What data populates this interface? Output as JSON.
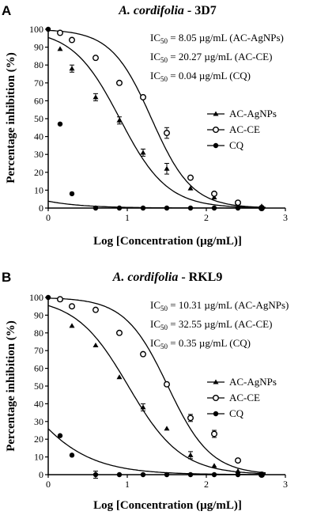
{
  "chart_data": [
    {
      "panel_label": "A",
      "title_italic": "A. cordifolia",
      "title_rest": " - 3D7",
      "type": "scatter",
      "xlabel": "Log [Concentration (µg/mL)]",
      "ylabel": "Percentage inhibition (%)",
      "xlim": [
        0,
        3
      ],
      "ylim": [
        0,
        100
      ],
      "x_ticks": [
        "0",
        "1",
        "2",
        "3"
      ],
      "y_ticks": [
        "0",
        "10",
        "20",
        "30",
        "40",
        "50",
        "60",
        "70",
        "80",
        "90",
        "100"
      ],
      "legend_position": "right-middle",
      "ic50_notes": [
        {
          "prefix": "IC",
          "sub": "50",
          "text": " = 8.05 µg/mL (AC-AgNPs)"
        },
        {
          "prefix": "IC",
          "sub": "50",
          "text": " = 20.27 µg/mL (AC-CE)"
        },
        {
          "prefix": "IC",
          "sub": "50",
          "text": " = 0.04 µg/mL (CQ)"
        }
      ],
      "series": [
        {
          "name": "AC-AgNPs",
          "marker": "triangle",
          "x": [
            0.15,
            0.3,
            0.6,
            0.9,
            1.2,
            1.5,
            1.8,
            2.1,
            2.4,
            2.7
          ],
          "y": [
            89,
            78,
            62,
            49,
            31,
            22,
            11,
            6,
            3,
            1
          ],
          "err": [
            0,
            2,
            2,
            2,
            2,
            3,
            0,
            0,
            0,
            0
          ],
          "ic50": 0.906,
          "hill": 1.45
        },
        {
          "name": "AC-CE",
          "marker": "circle-open",
          "x": [
            0.15,
            0.3,
            0.6,
            0.9,
            1.2,
            1.5,
            1.8,
            2.1,
            2.4,
            2.7
          ],
          "y": [
            98,
            94,
            84,
            70,
            62,
            42,
            17,
            8,
            3,
            0
          ],
          "err": [
            0,
            0,
            0,
            0,
            0,
            3,
            0,
            0,
            0,
            0
          ],
          "ic50": 1.307,
          "hill": 1.7
        },
        {
          "name": "CQ",
          "marker": "circle-filled",
          "x": [
            0,
            0.15,
            0.3,
            0.6,
            0.9,
            1.2,
            1.5,
            1.8,
            2.1,
            2.4,
            2.7
          ],
          "y": [
            100,
            47,
            8,
            0,
            0,
            0,
            0,
            0,
            0,
            0,
            0
          ],
          "err": [
            0,
            0,
            0,
            0,
            0,
            0,
            0,
            0,
            0,
            0,
            0
          ],
          "ic50": -1.398,
          "hill": 1.0
        }
      ]
    },
    {
      "panel_label": "B",
      "title_italic": "A. cordifolia",
      "title_rest": " - RKL9",
      "type": "scatter",
      "xlabel": "Log [Concentration (µg/mL)]",
      "ylabel": "Percentage inhibition (%)",
      "xlim": [
        0,
        3
      ],
      "ylim": [
        0,
        100
      ],
      "x_ticks": [
        "0",
        "1",
        "2",
        "3"
      ],
      "y_ticks": [
        "0",
        "10",
        "20",
        "30",
        "40",
        "50",
        "60",
        "70",
        "80",
        "90",
        "100"
      ],
      "legend_position": "right-middle",
      "ic50_notes": [
        {
          "prefix": "IC",
          "sub": "50",
          "text": " = 10.31 µg/mL (AC-AgNPs)"
        },
        {
          "prefix": "IC",
          "sub": "50",
          "text": " = 32.55 µg/mL (AC-CE)"
        },
        {
          "prefix": "IC",
          "sub": "50",
          "text": " = 0.35 µg/mL (CQ)"
        }
      ],
      "series": [
        {
          "name": "AC-AgNPs",
          "marker": "triangle",
          "x": [
            0.15,
            0.3,
            0.6,
            0.9,
            1.2,
            1.5,
            1.8,
            2.1,
            2.4,
            2.7
          ],
          "y": [
            99,
            84,
            73,
            55,
            38,
            26,
            11,
            5,
            2,
            0
          ],
          "err": [
            0,
            0,
            0,
            0,
            2,
            0,
            2,
            0,
            0,
            0
          ],
          "ic50": 1.013,
          "hill": 1.3
        },
        {
          "name": "AC-CE",
          "marker": "circle-open",
          "x": [
            0.15,
            0.3,
            0.6,
            0.9,
            1.2,
            1.5,
            1.8,
            2.1,
            2.4,
            2.7
          ],
          "y": [
            99,
            95,
            93,
            80,
            68,
            51,
            32,
            23,
            8,
            0
          ],
          "err": [
            0,
            0,
            0,
            0,
            0,
            0,
            2,
            2,
            0,
            0
          ],
          "ic50": 1.513,
          "hill": 1.6
        },
        {
          "name": "CQ",
          "marker": "circle-filled",
          "x": [
            0,
            0.15,
            0.3,
            0.6,
            0.9,
            1.2,
            1.5,
            1.8,
            2.1,
            2.4,
            2.7
          ],
          "y": [
            100,
            22,
            11,
            0,
            0,
            0,
            0,
            0,
            0,
            0,
            0
          ],
          "err": [
            0,
            0,
            0,
            2,
            0,
            0,
            0,
            0,
            0,
            0,
            0
          ],
          "ic50": -0.456,
          "hill": 1.0
        }
      ]
    }
  ]
}
